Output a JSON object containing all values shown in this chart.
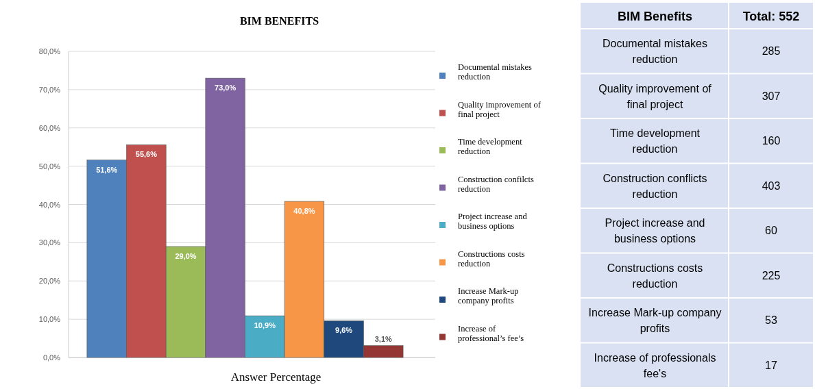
{
  "chart_data": [
    {
      "type": "bar",
      "title": "BIM BENEFITS",
      "xlabel": "Answer Percentage",
      "categories": [
        null
      ],
      "series": [
        {
          "name": "Documental mistakes reduction",
          "color": "#4f81bd",
          "values": [
            51.6
          ],
          "value_labels": [
            "51,6%"
          ]
        },
        {
          "name": "Quality improvement of final project",
          "color": "#c0504d",
          "values": [
            55.6
          ],
          "value_labels": [
            "55,6%"
          ]
        },
        {
          "name": "Time development reduction",
          "color": "#9bbb59",
          "values": [
            29.0
          ],
          "value_labels": [
            "29,0%"
          ]
        },
        {
          "name": "Construction confilcts reduction",
          "color": "#8064a2",
          "values": [
            73.0
          ],
          "value_labels": [
            "73,0%"
          ]
        },
        {
          "name": "Project increase and business options",
          "color": "#4bacc6",
          "values": [
            10.9
          ],
          "value_labels": [
            "10,9%"
          ]
        },
        {
          "name": "Constructions costs reduction",
          "color": "#f79646",
          "values": [
            40.8
          ],
          "value_labels": [
            "40,8%"
          ]
        },
        {
          "name": "Increase Mark-up company profits",
          "color": "#1f497d",
          "values": [
            9.6
          ],
          "value_labels": [
            "9,6%"
          ]
        },
        {
          "name": "Increase of professional’s fee’s",
          "color": "#943634",
          "values": [
            3.1
          ],
          "value_labels": [
            "3,1%"
          ]
        }
      ],
      "ylim": [
        0,
        80
      ],
      "yticks": [
        {
          "value": 0,
          "label": "0,0%"
        },
        {
          "value": 10,
          "label": "10,0%"
        },
        {
          "value": 20,
          "label": "20,0%"
        },
        {
          "value": 30,
          "label": "30,0%"
        },
        {
          "value": 40,
          "label": "40,0%"
        },
        {
          "value": 50,
          "label": "50,0%"
        },
        {
          "value": 60,
          "label": "60,0%"
        },
        {
          "value": 70,
          "label": "70,0%"
        },
        {
          "value": 80,
          "label": "80,0%"
        }
      ],
      "grid": "y",
      "legend": "right"
    },
    {
      "type": "other",
      "title": "BIM Benefits",
      "subtitle": "Total: 552",
      "categories": [
        "Documental mistakes reduction",
        "Quality improvement of final project",
        "Time development reduction",
        "Construction conflicts reduction",
        "Project increase and business options",
        "Constructions costs reduction",
        "Increase Mark-up company profits",
        "Increase of professionals fee's"
      ],
      "values": [
        285,
        307,
        160,
        403,
        60,
        225,
        53,
        17
      ],
      "data_labels": true
    }
  ]
}
